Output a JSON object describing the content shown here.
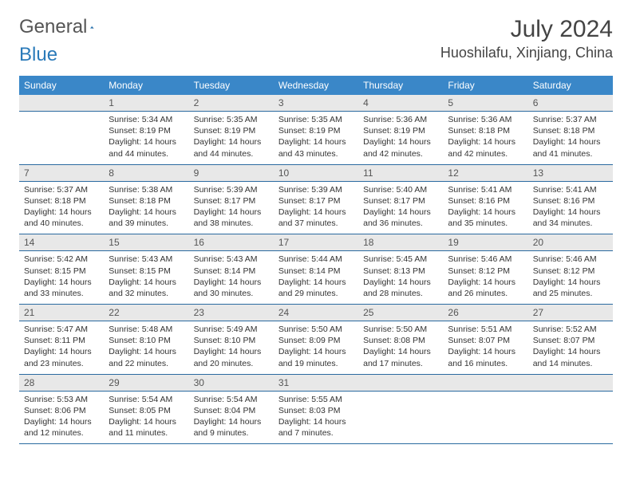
{
  "logo": {
    "text1": "General",
    "text2": "Blue"
  },
  "title": "July 2024",
  "location": "Huoshilafu, Xinjiang, China",
  "colors": {
    "header_bg": "#3a87c8",
    "header_text": "#ffffff",
    "daynum_bg": "#e8e8e8",
    "border": "#2a6aa0",
    "text": "#333333",
    "logo_gray": "#555555",
    "logo_blue": "#2a7ab9",
    "page_bg": "#ffffff"
  },
  "typography": {
    "title_fontsize": 30,
    "location_fontsize": 18,
    "weekday_fontsize": 12,
    "cell_fontsize": 10.5
  },
  "weekdays": [
    "Sunday",
    "Monday",
    "Tuesday",
    "Wednesday",
    "Thursday",
    "Friday",
    "Saturday"
  ],
  "weeks": [
    {
      "days": [
        null,
        {
          "n": "1",
          "sr": "5:34 AM",
          "ss": "8:19 PM",
          "dl": "14 hours and 44 minutes."
        },
        {
          "n": "2",
          "sr": "5:35 AM",
          "ss": "8:19 PM",
          "dl": "14 hours and 44 minutes."
        },
        {
          "n": "3",
          "sr": "5:35 AM",
          "ss": "8:19 PM",
          "dl": "14 hours and 43 minutes."
        },
        {
          "n": "4",
          "sr": "5:36 AM",
          "ss": "8:19 PM",
          "dl": "14 hours and 42 minutes."
        },
        {
          "n": "5",
          "sr": "5:36 AM",
          "ss": "8:18 PM",
          "dl": "14 hours and 42 minutes."
        },
        {
          "n": "6",
          "sr": "5:37 AM",
          "ss": "8:18 PM",
          "dl": "14 hours and 41 minutes."
        }
      ]
    },
    {
      "days": [
        {
          "n": "7",
          "sr": "5:37 AM",
          "ss": "8:18 PM",
          "dl": "14 hours and 40 minutes."
        },
        {
          "n": "8",
          "sr": "5:38 AM",
          "ss": "8:18 PM",
          "dl": "14 hours and 39 minutes."
        },
        {
          "n": "9",
          "sr": "5:39 AM",
          "ss": "8:17 PM",
          "dl": "14 hours and 38 minutes."
        },
        {
          "n": "10",
          "sr": "5:39 AM",
          "ss": "8:17 PM",
          "dl": "14 hours and 37 minutes."
        },
        {
          "n": "11",
          "sr": "5:40 AM",
          "ss": "8:17 PM",
          "dl": "14 hours and 36 minutes."
        },
        {
          "n": "12",
          "sr": "5:41 AM",
          "ss": "8:16 PM",
          "dl": "14 hours and 35 minutes."
        },
        {
          "n": "13",
          "sr": "5:41 AM",
          "ss": "8:16 PM",
          "dl": "14 hours and 34 minutes."
        }
      ]
    },
    {
      "days": [
        {
          "n": "14",
          "sr": "5:42 AM",
          "ss": "8:15 PM",
          "dl": "14 hours and 33 minutes."
        },
        {
          "n": "15",
          "sr": "5:43 AM",
          "ss": "8:15 PM",
          "dl": "14 hours and 32 minutes."
        },
        {
          "n": "16",
          "sr": "5:43 AM",
          "ss": "8:14 PM",
          "dl": "14 hours and 30 minutes."
        },
        {
          "n": "17",
          "sr": "5:44 AM",
          "ss": "8:14 PM",
          "dl": "14 hours and 29 minutes."
        },
        {
          "n": "18",
          "sr": "5:45 AM",
          "ss": "8:13 PM",
          "dl": "14 hours and 28 minutes."
        },
        {
          "n": "19",
          "sr": "5:46 AM",
          "ss": "8:12 PM",
          "dl": "14 hours and 26 minutes."
        },
        {
          "n": "20",
          "sr": "5:46 AM",
          "ss": "8:12 PM",
          "dl": "14 hours and 25 minutes."
        }
      ]
    },
    {
      "days": [
        {
          "n": "21",
          "sr": "5:47 AM",
          "ss": "8:11 PM",
          "dl": "14 hours and 23 minutes."
        },
        {
          "n": "22",
          "sr": "5:48 AM",
          "ss": "8:10 PM",
          "dl": "14 hours and 22 minutes."
        },
        {
          "n": "23",
          "sr": "5:49 AM",
          "ss": "8:10 PM",
          "dl": "14 hours and 20 minutes."
        },
        {
          "n": "24",
          "sr": "5:50 AM",
          "ss": "8:09 PM",
          "dl": "14 hours and 19 minutes."
        },
        {
          "n": "25",
          "sr": "5:50 AM",
          "ss": "8:08 PM",
          "dl": "14 hours and 17 minutes."
        },
        {
          "n": "26",
          "sr": "5:51 AM",
          "ss": "8:07 PM",
          "dl": "14 hours and 16 minutes."
        },
        {
          "n": "27",
          "sr": "5:52 AM",
          "ss": "8:07 PM",
          "dl": "14 hours and 14 minutes."
        }
      ]
    },
    {
      "days": [
        {
          "n": "28",
          "sr": "5:53 AM",
          "ss": "8:06 PM",
          "dl": "14 hours and 12 minutes."
        },
        {
          "n": "29",
          "sr": "5:54 AM",
          "ss": "8:05 PM",
          "dl": "14 hours and 11 minutes."
        },
        {
          "n": "30",
          "sr": "5:54 AM",
          "ss": "8:04 PM",
          "dl": "14 hours and 9 minutes."
        },
        {
          "n": "31",
          "sr": "5:55 AM",
          "ss": "8:03 PM",
          "dl": "14 hours and 7 minutes."
        },
        null,
        null,
        null
      ]
    }
  ],
  "labels": {
    "sunrise": "Sunrise:",
    "sunset": "Sunset:",
    "daylight": "Daylight:"
  }
}
